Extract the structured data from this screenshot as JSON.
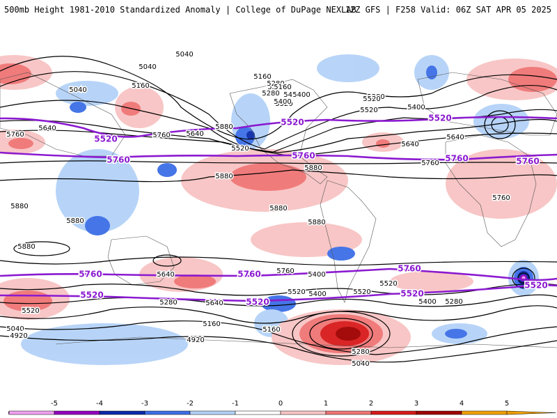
{
  "header": {
    "title": "500mb Height 1981-2010 Standardized Anomaly | College of DuPage NEXLAB",
    "run": "12Z GFS | F258 Valid: 06Z SAT APR 05 2025"
  },
  "colors": {
    "anomaly_-5": "#f0a0f0",
    "anomaly_-4": "#9300c0",
    "anomaly_-3": "#0a2aa8",
    "anomaly_-2": "#3c6ee6",
    "anomaly_-1": "#b4d2f8",
    "anomaly_0": "#ffffff",
    "anomaly_1": "#f8c4c4",
    "anomaly_2": "#f07474",
    "anomaly_3": "#d81a1a",
    "anomaly_4": "#a00000",
    "anomaly_5": "#f0a000",
    "highlight_contour": "#8b1ad0"
  },
  "contour_labels": {
    "black": [
      "5040",
      "5040",
      "5040",
      "5160",
      "5280",
      "5400",
      "5520",
      "5640",
      "5760",
      "5880",
      "5160",
      "5280",
      "5400",
      "5280",
      "5520",
      "5400",
      "5640",
      "5520",
      "5760",
      "5880",
      "5880",
      "5880",
      "5880",
      "5880",
      "5640",
      "5520",
      "5880",
      "5880",
      "5760",
      "5760",
      "5640",
      "5760",
      "5400",
      "5280",
      "5520",
      "5400",
      "5640",
      "5520",
      "5520",
      "5400",
      "5280",
      "5040",
      "5160",
      "5160",
      "4920",
      "5040",
      "4920",
      "5280",
      "5040",
      "4920",
      "5520",
      "5640",
      "5160",
      "5280",
      "5400"
    ],
    "purple": [
      "5520",
      "5520",
      "5520",
      "5760",
      "5760",
      "5760",
      "5760",
      "5520",
      "5760",
      "5760",
      "5520",
      "5520",
      "5520",
      "5760"
    ]
  },
  "legend": {
    "ticks": [
      "-5",
      "-4",
      "-3",
      "-2",
      "-1",
      "0",
      "1",
      "2",
      "3",
      "4",
      "5"
    ]
  }
}
